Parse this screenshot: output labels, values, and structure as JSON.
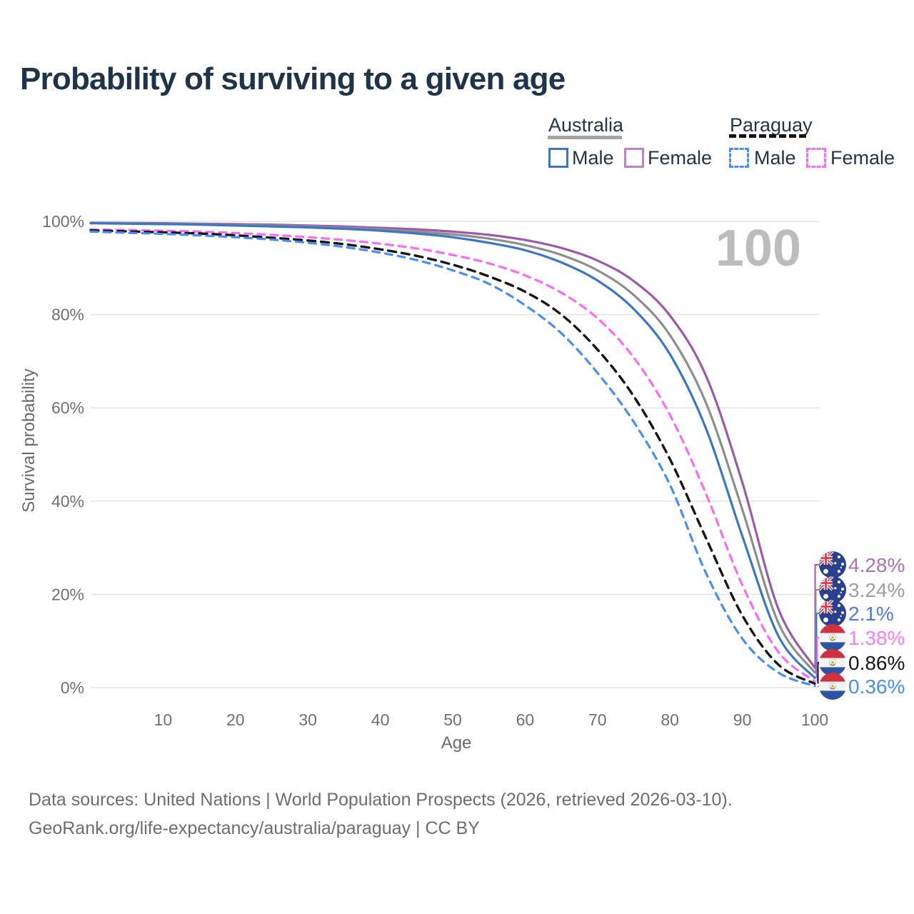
{
  "page": {
    "background": "#ffffff",
    "title_color": "#1f3449"
  },
  "legend": {
    "groups": [
      {
        "label": "Australia",
        "line_style": "solid",
        "underline_color": "#a3a3a3",
        "items": [
          {
            "label": "Male",
            "color": "#3c76c2"
          },
          {
            "label": "Female",
            "color": "#bd84c4"
          }
        ]
      },
      {
        "label": "Paraguay",
        "line_style": "dashed",
        "underline_color": "#151515",
        "items": [
          {
            "label": "Male",
            "color": "#4a8cf2"
          },
          {
            "label": "Female",
            "color": "#fb6cf0"
          }
        ]
      }
    ]
  },
  "chart_data": {
    "type": "line",
    "title": "Probability of surviving to a given age",
    "xlabel": "Age",
    "ylabel": "Survival probability",
    "xlim": [
      0,
      100
    ],
    "ylim": [
      0,
      100
    ],
    "x_ticks": [
      10,
      20,
      30,
      40,
      50,
      60,
      70,
      80,
      90,
      100
    ],
    "y_ticks_pct": [
      100,
      80,
      60,
      40,
      20,
      0
    ],
    "y_tick_labels": [
      "100%",
      "80%",
      "60%",
      "40%",
      "20%",
      "0%"
    ],
    "grid": "horizontal",
    "legend_position": "top-right",
    "watermark": "100",
    "x": [
      0,
      5,
      10,
      15,
      20,
      25,
      30,
      35,
      40,
      45,
      50,
      55,
      60,
      65,
      70,
      75,
      80,
      85,
      90,
      95,
      100
    ],
    "series": [
      {
        "name": "Australia Female",
        "country": "Australia",
        "flag": "australia",
        "color": "#9c59a6",
        "line_style": "solid",
        "end_label": "4.28%",
        "end_label_color": "#a874b3",
        "values": [
          99.7,
          99.65,
          99.6,
          99.5,
          99.4,
          99.3,
          99.1,
          98.9,
          98.6,
          98.3,
          97.8,
          97.1,
          96.0,
          94.3,
          91.6,
          87.2,
          79.8,
          66.8,
          44.0,
          16.8,
          4.28
        ]
      },
      {
        "name": "Australia",
        "country": "Australia",
        "flag": "australia",
        "color": "#8d8d8d",
        "line_style": "solid",
        "end_label": "3.24%",
        "end_label_color": "#9d9d9d",
        "values": [
          99.65,
          99.6,
          99.5,
          99.4,
          99.25,
          99.1,
          98.9,
          98.6,
          98.3,
          97.8,
          97.2,
          96.3,
          94.9,
          92.8,
          89.5,
          84.2,
          75.6,
          61.0,
          38.2,
          13.8,
          3.24
        ]
      },
      {
        "name": "Australia Male",
        "country": "Australia",
        "flag": "australia",
        "color": "#3c76c2",
        "line_style": "solid",
        "end_label": "2.1%",
        "end_label_color": "#4f7ec9",
        "values": [
          99.6,
          99.5,
          99.4,
          99.3,
          99.1,
          98.9,
          98.7,
          98.4,
          98.0,
          97.4,
          96.6,
          95.4,
          93.8,
          91.2,
          87.3,
          81.2,
          71.5,
          55.5,
          32.5,
          11.0,
          2.1
        ]
      },
      {
        "name": "Paraguay Female",
        "country": "Paraguay",
        "flag": "paraguay",
        "color": "#fb6cf0",
        "line_style": "dashed",
        "end_label": "1.38%",
        "end_label_color": "#fb7df2",
        "values": [
          98.3,
          98.15,
          98.0,
          97.8,
          97.5,
          97.1,
          96.6,
          96.0,
          95.2,
          94.2,
          92.8,
          91.0,
          88.4,
          84.7,
          79.2,
          70.8,
          58.5,
          41.5,
          22.0,
          7.6,
          1.38
        ]
      },
      {
        "name": "Paraguay",
        "country": "Paraguay",
        "flag": "paraguay",
        "color": "#161616",
        "line_style": "dashed",
        "end_label": "0.86%",
        "end_label_color": "#161616",
        "values": [
          98.05,
          97.85,
          97.65,
          97.4,
          97.0,
          96.5,
          95.9,
          95.1,
          94.0,
          92.6,
          90.7,
          88.2,
          84.9,
          80.0,
          72.5,
          62.5,
          49.0,
          32.0,
          15.5,
          4.9,
          0.86
        ]
      },
      {
        "name": "Paraguay Male",
        "country": "Paraguay",
        "flag": "paraguay",
        "color": "#4a8cf2",
        "line_style": "dashed",
        "end_label": "0.36%",
        "end_label_color": "#4a8cf2",
        "values": [
          97.8,
          97.55,
          97.3,
          97.0,
          96.6,
          96.1,
          95.4,
          94.5,
          93.3,
          91.7,
          89.5,
          86.6,
          82.0,
          76.0,
          67.5,
          57.0,
          43.5,
          24.5,
          10.5,
          3.2,
          0.36
        ]
      }
    ]
  },
  "footer": {
    "line1": "Data sources: United Nations | World Population Prospects (2026, retrieved 2026-03-10).",
    "line2": "GeoRank.org/life-expectancy/australia/paraguay | CC BY"
  }
}
